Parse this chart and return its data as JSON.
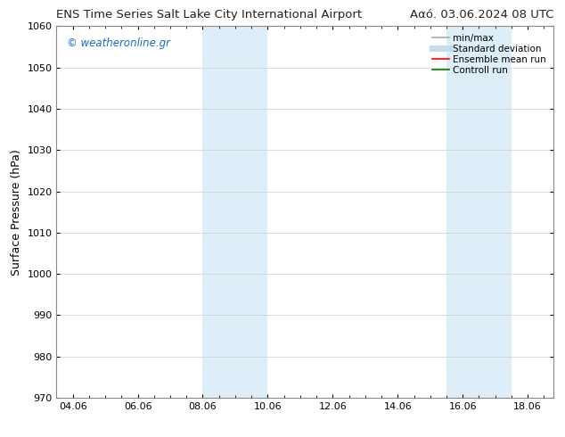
{
  "title_left": "ENS Time Series Salt Lake City International Airport",
  "title_right": "Ααό. 03.06.2024 08 UTC",
  "ylabel": "Surface Pressure (hPa)",
  "ylim": [
    970,
    1060
  ],
  "yticks": [
    970,
    980,
    990,
    1000,
    1010,
    1020,
    1030,
    1040,
    1050,
    1060
  ],
  "xlim_start": 3.5,
  "xlim_end": 18.8,
  "xtick_labels": [
    "04.06",
    "06.06",
    "08.06",
    "10.06",
    "12.06",
    "14.06",
    "16.06",
    "18.06"
  ],
  "xtick_positions": [
    4.0,
    6.0,
    8.0,
    10.0,
    12.0,
    14.0,
    16.0,
    18.0
  ],
  "shaded_bands": [
    {
      "xmin": 8.0,
      "xmax": 10.0
    },
    {
      "xmin": 15.5,
      "xmax": 17.5
    }
  ],
  "shaded_color": "#ddeef8",
  "watermark_text": "© weatheronline.gr",
  "watermark_color": "#1a6abf",
  "legend_items": [
    {
      "label": "min/max",
      "color": "#aaaaaa",
      "lw": 1.2,
      "style": "solid"
    },
    {
      "label": "Standard deviation",
      "color": "#c5dced",
      "lw": 5,
      "style": "solid"
    },
    {
      "label": "Ensemble mean run",
      "color": "red",
      "lw": 1.2,
      "style": "solid"
    },
    {
      "label": "Controll run",
      "color": "green",
      "lw": 1.2,
      "style": "solid"
    }
  ],
  "background_color": "#ffffff",
  "grid_color": "#cccccc",
  "title_fontsize": 9.5,
  "tick_fontsize": 8,
  "ylabel_fontsize": 9,
  "legend_fontsize": 7.5,
  "watermark_fontsize": 8.5,
  "spine_color": "#888888"
}
